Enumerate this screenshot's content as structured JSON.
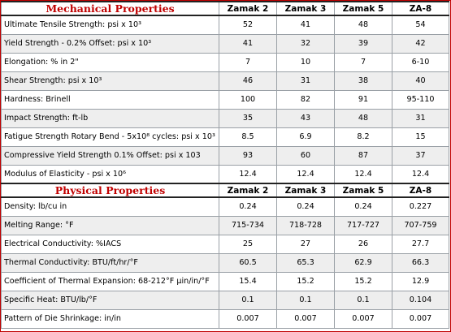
{
  "mechanical": {
    "title": "Mechanical Properties",
    "columns": [
      "Zamak 2",
      "Zamak 3",
      "Zamak 5",
      "ZA-8"
    ],
    "rows": [
      {
        "label": "Ultimate Tensile Strength: psi x 10³",
        "values": [
          "52",
          "41",
          "48",
          "54"
        ]
      },
      {
        "label": "Yield Strength - 0.2% Offset: psi x 10³",
        "values": [
          "41",
          "32",
          "39",
          "42"
        ]
      },
      {
        "label": "Elongation: % in 2\"",
        "values": [
          "7",
          "10",
          "7",
          "6-10"
        ]
      },
      {
        "label": "Shear Strength: psi x 10³",
        "values": [
          "46",
          "31",
          "38",
          "40"
        ]
      },
      {
        "label": "Hardness: Brinell",
        "values": [
          "100",
          "82",
          "91",
          "95-110"
        ]
      },
      {
        "label": "Impact Strength: ft-lb",
        "values": [
          "35",
          "43",
          "48",
          "31"
        ]
      },
      {
        "label": "Fatigue Strength Rotary Bend - 5x10⁸ cycles: psi x 10³",
        "values": [
          "8.5",
          "6.9",
          "8.2",
          "15"
        ]
      },
      {
        "label": "Compressive Yield Strength 0.1% Offset: psi x 103",
        "values": [
          "93",
          "60",
          "87",
          "37"
        ]
      },
      {
        "label": "Modulus of Elasticity - psi x 10⁶",
        "values": [
          "12.4",
          "12.4",
          "12.4",
          "12.4"
        ]
      }
    ]
  },
  "physical": {
    "title": "Physical Properties",
    "columns": [
      "Zamak 2",
      "Zamak 3",
      "Zamak 5",
      "ZA-8"
    ],
    "rows": [
      {
        "label": "Density: lb/cu in",
        "values": [
          "0.24",
          "0.24",
          "0.24",
          "0.227"
        ]
      },
      {
        "label": "Melting Range: °F",
        "values": [
          "715-734",
          "718-728",
          "717-727",
          "707-759"
        ]
      },
      {
        "label": "Electrical Conductivity: %IACS",
        "values": [
          "25",
          "27",
          "26",
          "27.7"
        ]
      },
      {
        "label": "Thermal Conductivity: BTU/ft/hr/°F",
        "values": [
          "60.5",
          "65.3",
          "62.9",
          "66.3"
        ]
      },
      {
        "label": "Coefficient of Thermal Expansion: 68-212°F µin/in/°F",
        "values": [
          "15.4",
          "15.2",
          "15.2",
          "12.9"
        ]
      },
      {
        "label": "Specific Heat: BTU/lb/°F",
        "values": [
          "0.1",
          "0.1",
          "0.1",
          "0.104"
        ]
      },
      {
        "label": "Pattern of Die Shrinkage: in/in",
        "values": [
          "0.007",
          "0.007",
          "0.007",
          "0.007"
        ]
      }
    ]
  }
}
